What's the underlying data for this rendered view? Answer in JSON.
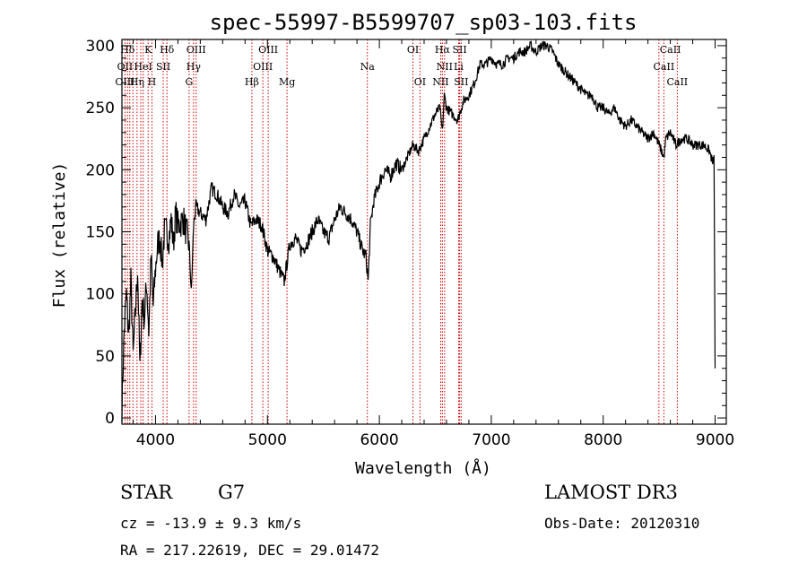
{
  "chart_data": {
    "type": "line",
    "title": "spec-55997-B5599707_sp03-103.fits",
    "xlabel": "Wavelength (Å)",
    "ylabel": "Flux (relative)",
    "xlim": [
      3700,
      9100
    ],
    "ylim": [
      -5,
      305
    ],
    "x_ticks": [
      4000,
      5000,
      6000,
      7000,
      8000,
      9000
    ],
    "y_ticks": [
      0,
      50,
      100,
      150,
      200,
      250,
      300
    ],
    "grid": false,
    "series": [
      {
        "name": "spectrum",
        "x": [
          3700,
          3720,
          3740,
          3760,
          3780,
          3800,
          3820,
          3840,
          3860,
          3880,
          3900,
          3920,
          3940,
          3960,
          3980,
          4000,
          4020,
          4040,
          4060,
          4080,
          4100,
          4120,
          4140,
          4160,
          4180,
          4200,
          4250,
          4300,
          4320,
          4340,
          4360,
          4400,
          4450,
          4500,
          4550,
          4600,
          4650,
          4700,
          4750,
          4800,
          4850,
          4900,
          4950,
          5000,
          5050,
          5100,
          5150,
          5200,
          5250,
          5300,
          5350,
          5400,
          5450,
          5500,
          5550,
          5600,
          5650,
          5700,
          5750,
          5800,
          5850,
          5880,
          5900,
          5920,
          5950,
          6000,
          6050,
          6100,
          6150,
          6200,
          6250,
          6300,
          6350,
          6400,
          6450,
          6500,
          6540,
          6563,
          6580,
          6600,
          6650,
          6700,
          6750,
          6800,
          6850,
          6900,
          6950,
          7000,
          7050,
          7100,
          7150,
          7200,
          7250,
          7300,
          7350,
          7400,
          7450,
          7500,
          7550,
          7600,
          7650,
          7700,
          7750,
          7800,
          7850,
          7900,
          7950,
          8000,
          8050,
          8100,
          8150,
          8200,
          8250,
          8300,
          8350,
          8400,
          8450,
          8500,
          8542,
          8560,
          8600,
          8650,
          8700,
          8750,
          8800,
          8850,
          8900,
          8950,
          8980,
          8990,
          9000
        ],
        "y": [
          10,
          70,
          100,
          65,
          110,
          50,
          85,
          120,
          40,
          95,
          80,
          110,
          70,
          130,
          90,
          120,
          140,
          145,
          125,
          150,
          150,
          145,
          160,
          140,
          165,
          155,
          160,
          140,
          100,
          155,
          170,
          165,
          160,
          185,
          180,
          170,
          165,
          180,
          170,
          175,
          155,
          160,
          155,
          135,
          130,
          120,
          110,
          140,
          145,
          135,
          140,
          150,
          160,
          150,
          145,
          160,
          170,
          165,
          160,
          150,
          135,
          130,
          110,
          155,
          175,
          190,
          200,
          195,
          205,
          200,
          210,
          220,
          215,
          225,
          235,
          245,
          250,
          230,
          260,
          250,
          245,
          240,
          255,
          260,
          270,
          285,
          285,
          290,
          285,
          285,
          290,
          290,
          295,
          295,
          300,
          295,
          300,
          300,
          295,
          285,
          280,
          275,
          270,
          265,
          260,
          260,
          250,
          250,
          245,
          250,
          240,
          235,
          240,
          235,
          230,
          225,
          230,
          220,
          210,
          225,
          230,
          220,
          225,
          225,
          220,
          220,
          220,
          215,
          205,
          210,
          40
        ]
      }
    ],
    "emission_lines": [
      {
        "label": "Hδ",
        "x": 3750,
        "row": 1
      },
      {
        "label": "K",
        "x": 3934,
        "row": 1
      },
      {
        "label": "Hδ",
        "x": 4102,
        "row": 1
      },
      {
        "label": "OIII",
        "x": 4363,
        "row": 1
      },
      {
        "label": "OIII",
        "x": 5007,
        "row": 1
      },
      {
        "label": "OI",
        "x": 6300,
        "row": 1
      },
      {
        "label": "Hα",
        "x": 6563,
        "row": 1
      },
      {
        "label": "SII",
        "x": 6717,
        "row": 1
      },
      {
        "label": "CaII",
        "x": 8600,
        "row": 1
      },
      {
        "label": "OII",
        "x": 3727,
        "row": 2
      },
      {
        "label": "HeI",
        "x": 3889,
        "row": 2
      },
      {
        "label": "SII",
        "x": 4069,
        "row": 2
      },
      {
        "label": "Hγ",
        "x": 4340,
        "row": 2
      },
      {
        "label": "OIII",
        "x": 4959,
        "row": 2
      },
      {
        "label": "Na",
        "x": 5893,
        "row": 2
      },
      {
        "label": "NII",
        "x": 6583,
        "row": 2
      },
      {
        "label": "Li",
        "x": 6708,
        "row": 2
      },
      {
        "label": "CaII",
        "x": 8542,
        "row": 2
      },
      {
        "label": "OIII",
        "x": 3727,
        "row": 3
      },
      {
        "label": "Hη",
        "x": 3835,
        "row": 3
      },
      {
        "label": "H",
        "x": 3968,
        "row": 3
      },
      {
        "label": "G",
        "x": 4300,
        "row": 3
      },
      {
        "label": "Hβ",
        "x": 4861,
        "row": 3
      },
      {
        "label": "Mg",
        "x": 5175,
        "row": 3
      },
      {
        "label": "OI",
        "x": 6363,
        "row": 3
      },
      {
        "label": "NII",
        "x": 6548,
        "row": 3
      },
      {
        "label": "SII",
        "x": 6731,
        "row": 3
      },
      {
        "label": "CaII",
        "x": 8662,
        "row": 3
      }
    ],
    "line_positions": [
      3727,
      3750,
      3770,
      3798,
      3835,
      3868,
      3889,
      3934,
      3968,
      4069,
      4102,
      4300,
      4340,
      4363,
      4861,
      4959,
      5007,
      5175,
      5893,
      6300,
      6363,
      6548,
      6563,
      6583,
      6708,
      6717,
      6731,
      8498,
      8542,
      8662
    ]
  },
  "info": {
    "object_class": "STAR",
    "subclass": "G7",
    "survey": "LAMOST DR3",
    "cz": "cz = -13.9 ± 9.3 km/s",
    "obs_date": "Obs-Date: 20120310",
    "coords": "RA = 217.22619, DEC =  29.01472"
  },
  "colors": {
    "spectrum": "#000000",
    "emission_line": "#cc0000",
    "axes": "#000000"
  }
}
